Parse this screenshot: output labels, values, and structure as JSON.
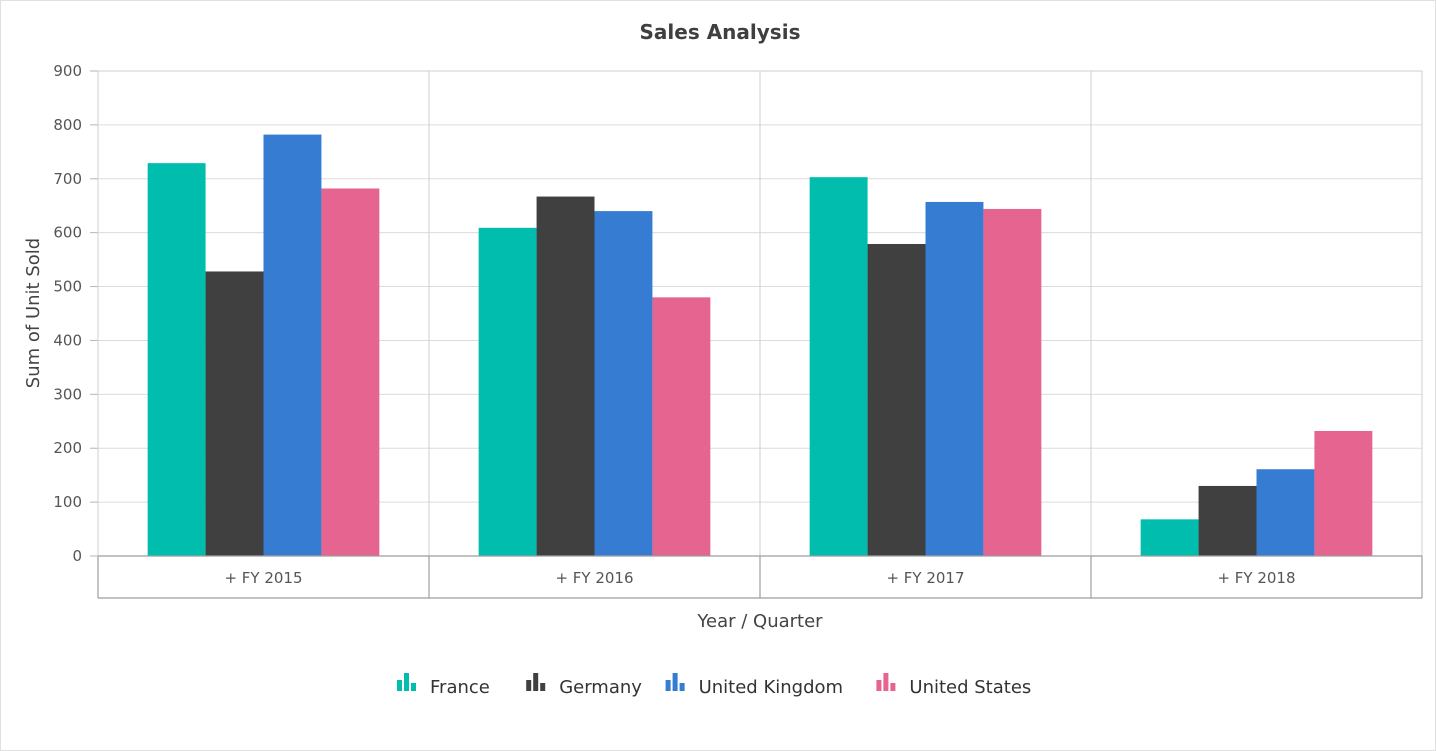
{
  "chart_data": {
    "type": "bar",
    "title": "Sales Analysis",
    "xlabel": "Year / Quarter",
    "ylabel": "Sum of Unit Sold",
    "categories": [
      "+ FY 2015",
      "+ FY 2016",
      "+ FY 2017",
      "+ FY 2018"
    ],
    "series": [
      {
        "name": "France",
        "color": "#00bdae",
        "values": [
          729,
          609,
          703,
          68
        ]
      },
      {
        "name": "Germany",
        "color": "#404041",
        "values": [
          528,
          667,
          579,
          130
        ]
      },
      {
        "name": "United Kingdom",
        "color": "#357cd2",
        "values": [
          782,
          640,
          657,
          161
        ]
      },
      {
        "name": "United States",
        "color": "#e56590",
        "values": [
          682,
          480,
          644,
          232
        ]
      }
    ],
    "ylim": [
      0,
      900
    ],
    "yticks": [
      0,
      100,
      200,
      300,
      400,
      500,
      600,
      700,
      800,
      900
    ],
    "grid": true,
    "legend_position": "bottom"
  }
}
